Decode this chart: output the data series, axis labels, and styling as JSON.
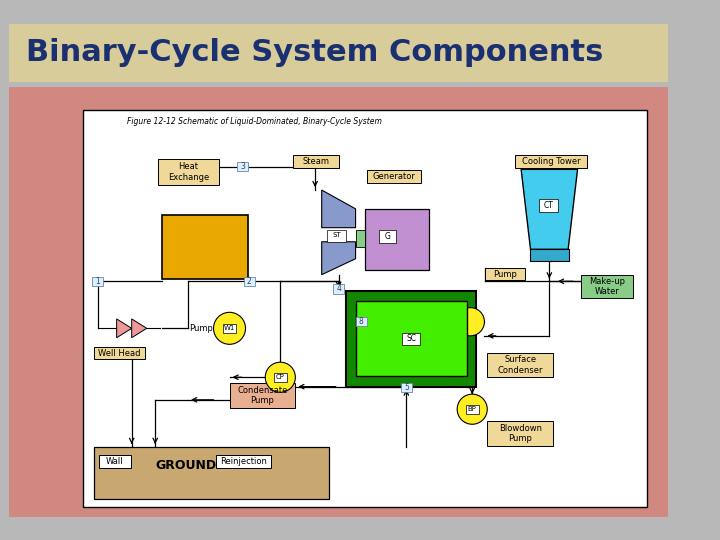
{
  "title": "Binary-Cycle System Components",
  "title_color": "#1a3070",
  "title_bg": "#d8cc9a",
  "slide_bg": "#b8b8b8",
  "inner_bg": "#ffffff",
  "figure_caption": "Figure 12-12 Schematic of Liquid-Dominated, Binary-Cycle System",
  "outer_border_color": "#d08880",
  "colors": {
    "orange_box": "#e8a800",
    "green_outer": "#228800",
    "green_inner": "#44ee00",
    "purple_box": "#c090d0",
    "blue_turbine": "#8899cc",
    "cyan_tower": "#44ccee",
    "cyan_bar": "#33aacc",
    "yellow_pump": "#ffee22",
    "pink_valve": "#ee9999",
    "salmon_box": "#e8b090",
    "tan_ground": "#c8a870",
    "light_green_conn": "#88cc88",
    "label_box_tan": "#f0d898",
    "makeup_water_green": "#88cc88"
  },
  "components": {
    "heat_exchanger_label": "Heat\nExchange",
    "steam_label": "Steam",
    "generator_label": "Generator",
    "cooling_tower_label": "Cooling Tower",
    "pump_label": "Pump",
    "makeup_water_label": "Make-up\nWater",
    "surface_condenser_label": "Surface\nCondenser",
    "condensate_pump_label": "Condensate\nPump",
    "blowdown_pump_label": "Blowdown\nPump",
    "well_head_label": "Well Head",
    "ground_label": "GROUND",
    "wall_label": "Wall",
    "reinjection_label": "Reinjection",
    "sc_label": "SC",
    "st_label": "ST",
    "g_label": "G",
    "ct_label": "CT",
    "cp_label": "CP",
    "bp_label": "BP",
    "w1_label": "W1",
    "pump2_label": "Pump"
  }
}
